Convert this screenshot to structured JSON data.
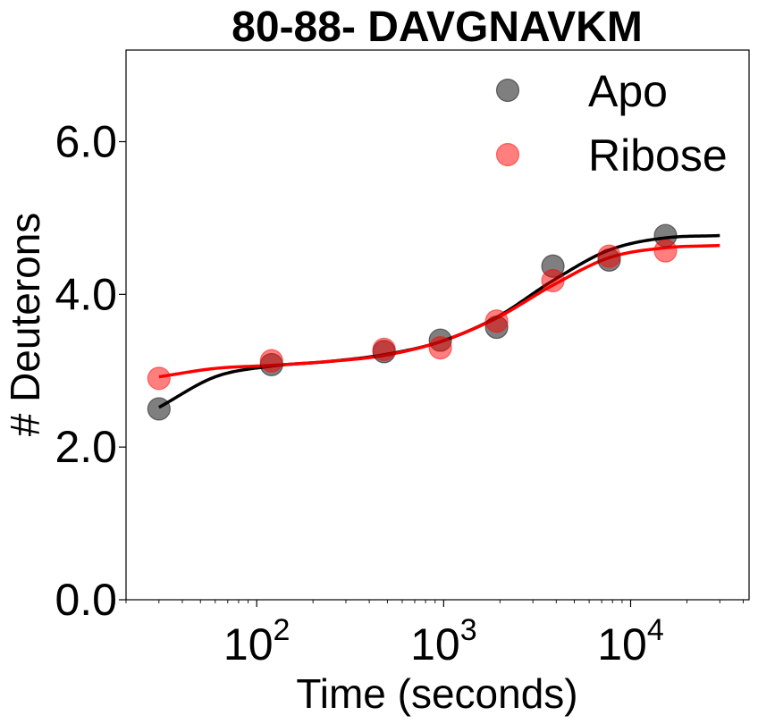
{
  "chart_data": {
    "type": "scatter",
    "title": "80-88- DAVGNAVKM",
    "xlabel": "Time (seconds)",
    "ylabel": "# Deuterons",
    "xscale": "log",
    "xlim": [
      20,
      43000
    ],
    "ylim": [
      0,
      7.2
    ],
    "xticks": [
      {
        "value": 100,
        "base": "10",
        "exp": "2"
      },
      {
        "value": 1000,
        "base": "10",
        "exp": "3"
      },
      {
        "value": 10000,
        "base": "10",
        "exp": "4"
      }
    ],
    "yticks": [
      {
        "value": 0,
        "label": "0.0"
      },
      {
        "value": 2,
        "label": "2.0"
      },
      {
        "value": 4,
        "label": "4.0"
      },
      {
        "value": 6,
        "label": "6.0"
      }
    ],
    "legend_position": "top-right",
    "series": [
      {
        "name": "Apo",
        "color": "#000000",
        "marker_opacity": 0.5,
        "x": [
          30,
          120,
          480,
          960,
          1920,
          3840,
          7680,
          15360
        ],
        "y": [
          2.5,
          3.08,
          3.25,
          3.4,
          3.57,
          4.37,
          4.45,
          4.77
        ],
        "fit_x": [
          30,
          60,
          120,
          240,
          480,
          960,
          1920,
          3840,
          7680,
          15360,
          30000
        ],
        "fit_y": [
          2.52,
          2.92,
          3.06,
          3.12,
          3.21,
          3.38,
          3.7,
          4.18,
          4.58,
          4.74,
          4.77
        ]
      },
      {
        "name": "Ribose",
        "color": "#ff0000",
        "marker_opacity": 0.5,
        "x": [
          30,
          120,
          480,
          960,
          1920,
          3840,
          7680,
          15360
        ],
        "y": [
          2.9,
          3.13,
          3.28,
          3.3,
          3.65,
          4.18,
          4.5,
          4.57
        ],
        "fit_x": [
          30,
          60,
          120,
          240,
          480,
          960,
          1920,
          3840,
          7680,
          15360,
          30000
        ],
        "fit_y": [
          2.92,
          3.03,
          3.07,
          3.12,
          3.2,
          3.38,
          3.69,
          4.12,
          4.48,
          4.61,
          4.64
        ]
      }
    ]
  }
}
